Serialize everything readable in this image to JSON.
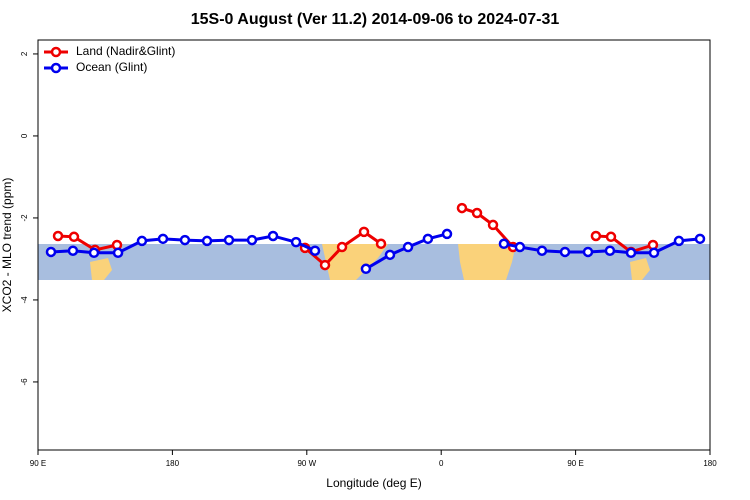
{
  "chart_data": {
    "type": "line",
    "title": "15S-0 August (Ver 11.2)   2014-09-06 to 2024-07-31",
    "x_label": "Longitude (deg E)",
    "y_label": "XCO2 - MLO trend (ppm)",
    "xlim": [
      90,
      540
    ],
    "xticks": [
      {
        "value": 90,
        "label": "90 E"
      },
      {
        "value": 180,
        "label": "180"
      },
      {
        "value": 270,
        "label": "90 W"
      },
      {
        "value": 360,
        "label": "0"
      },
      {
        "value": 450,
        "label": "90 E"
      },
      {
        "value": 540,
        "label": "180"
      }
    ],
    "ylim": [
      -7.66,
      2.34
    ],
    "yticks": [
      2,
      0,
      -2,
      -4,
      -6
    ],
    "legend": "topleft",
    "series": [
      {
        "name": "Land (Nadir&Glint)",
        "color": "#ee0000",
        "x": [
          103.4,
          114.1,
          128.2,
          142.9,
          null,
          268.8,
          282.2,
          293.6,
          308.3,
          319.7,
          null,
          373.9,
          384.0,
          394.7,
          408.1,
          null,
          463.6,
          473.7,
          487.1,
          501.8
        ],
        "values": [
          -2.44,
          -2.46,
          -2.78,
          -2.66,
          null,
          -2.73,
          -3.15,
          -2.71,
          -2.34,
          -2.63,
          null,
          -1.76,
          -1.88,
          -2.17,
          -2.71,
          null,
          -2.44,
          -2.46,
          -2.83,
          -2.66
        ]
      },
      {
        "name": "Ocean (Glint)",
        "color": "#0000ee",
        "x": [
          98.7,
          113.4,
          127.5,
          143.6,
          159.6,
          173.7,
          188.4,
          203.2,
          217.9,
          233.3,
          247.4,
          262.8,
          275.5,
          null,
          309.6,
          325.7,
          337.8,
          351.1,
          363.9,
          null,
          402.0,
          412.7,
          427.5,
          442.9,
          458.3,
          473.0,
          487.1,
          502.5,
          519.2,
          533.3
        ],
        "values": [
          -2.83,
          -2.8,
          -2.85,
          -2.85,
          -2.56,
          -2.51,
          -2.54,
          -2.56,
          -2.54,
          -2.54,
          -2.44,
          -2.59,
          -2.8,
          null,
          -3.24,
          -2.9,
          -2.71,
          -2.51,
          -2.39,
          null,
          -2.63,
          -2.71,
          -2.8,
          -2.83,
          -2.83,
          -2.8,
          -2.85,
          -2.85,
          -2.56,
          -2.51
        ]
      }
    ]
  }
}
